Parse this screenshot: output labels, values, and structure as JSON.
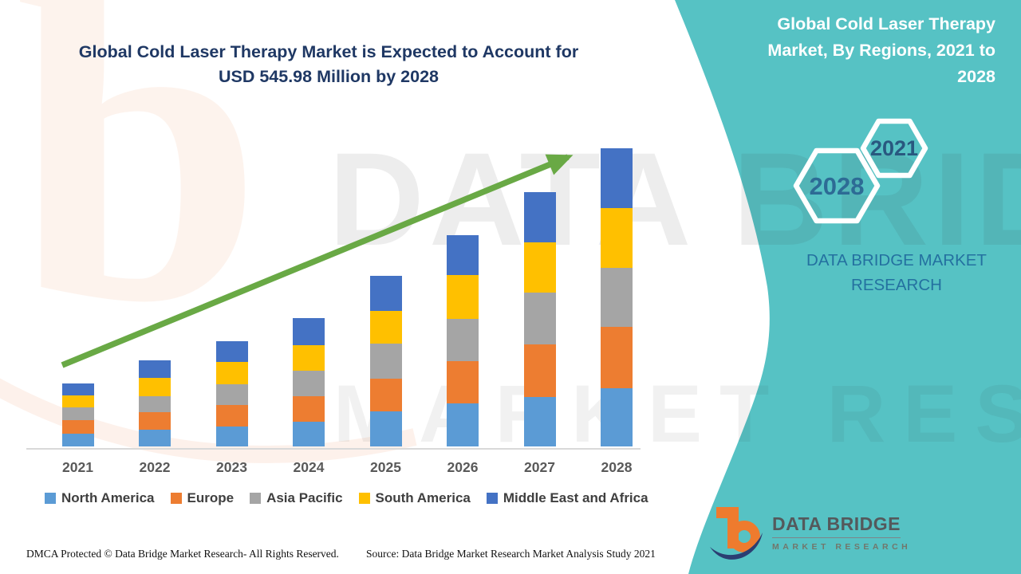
{
  "page": {
    "background": "#ffffff",
    "accent_teal": "#56C2C4"
  },
  "header": {
    "title_line1": "Global Cold Laser Therapy Market is Expected to Account for",
    "title_line2": "USD 545.98 Million by 2028",
    "title_color": "#1F3864"
  },
  "side_panel": {
    "title_lines": [
      "Global Cold Laser Therapy",
      "Market, By Regions, 2021 to",
      "2028"
    ],
    "hexagon_small_label": "2021",
    "hexagon_large_label": "2028",
    "brand_line1": "DATA BRIDGE MARKET",
    "brand_line2": "RESEARCH"
  },
  "chart_data": {
    "type": "bar",
    "stacked": true,
    "unit": "USD Million",
    "title": "Global Cold Laser Therapy Market is Expected to Account for USD 545.98 Million by 2028",
    "categories": [
      "2021",
      "2022",
      "2023",
      "2024",
      "2025",
      "2026",
      "2027",
      "2028"
    ],
    "series": [
      {
        "name": "North America",
        "color": "#5B9BD5",
        "values": [
          23.4,
          30.7,
          36.5,
          45.3,
          64.2,
          78.8,
          90.5,
          106.6
        ]
      },
      {
        "name": "Europe",
        "color": "#ED7D31",
        "values": [
          24.8,
          32.1,
          39.4,
          46.7,
          59.9,
          77.4,
          96.4,
          112.4
        ]
      },
      {
        "name": "Asia Pacific",
        "color": "#A5A5A5",
        "values": [
          23.4,
          29.2,
          38.0,
          46.7,
          64.2,
          77.4,
          94.9,
          108.0
        ]
      },
      {
        "name": "South America",
        "color": "#FFC000",
        "values": [
          21.9,
          33.6,
          40.9,
          46.7,
          59.9,
          80.3,
          92.0,
          109.5
        ]
      },
      {
        "name": "Middle East and Africa",
        "color": "#4472C4",
        "values": [
          21.9,
          32.1,
          38.0,
          49.6,
          64.2,
          73.0,
          92.0,
          109.5
        ]
      }
    ],
    "totals_estimated": [
      115.4,
      157.7,
      192.8,
      235.0,
      312.4,
      386.9,
      465.8,
      545.98
    ],
    "ylim": [
      0,
      560
    ],
    "grid": false,
    "legend_position": "bottom",
    "annotations": [
      "green rising trend arrow spanning 2021 to 2028"
    ],
    "x_tick_color": "#595959"
  },
  "footer": {
    "left": "DMCA Protected © Data Bridge Market Research- All Rights Reserved.",
    "right": "Source: Data Bridge Market Research Market Analysis Study 2021"
  },
  "logo": {
    "line1": "DATA BRIDGE",
    "line2": "MARKET RESEARCH"
  },
  "watermark": {
    "letter_b": "b",
    "line1": "DATA BRIDGE",
    "line2": "MARKET RESEARCH"
  }
}
